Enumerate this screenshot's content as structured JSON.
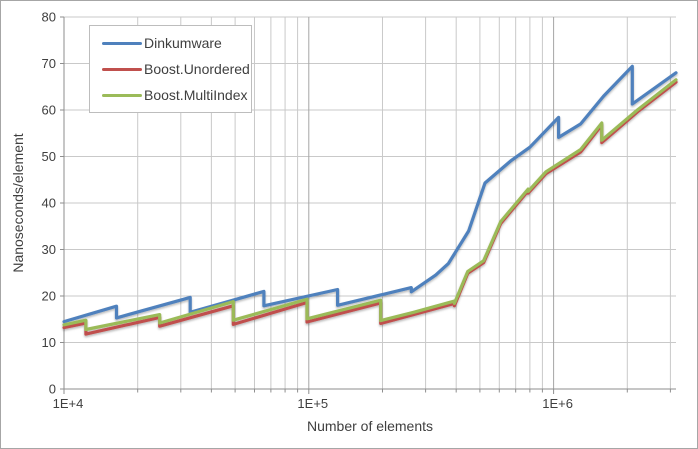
{
  "window": {
    "background": "#ffffff",
    "frame_border_color": "#a6a6a6"
  },
  "chart_data": {
    "type": "line",
    "x_scale": "log",
    "title": "",
    "xlabel": "Number of elements",
    "ylabel": "Nanoseconds/element",
    "xlim": [
      10000,
      3162278
    ],
    "ylim": [
      0,
      80
    ],
    "y_ticks": [
      0,
      10,
      20,
      30,
      40,
      50,
      60,
      70,
      80
    ],
    "x_major_ticks": [
      {
        "value": 10000,
        "label": "1E+4"
      },
      {
        "value": 100000,
        "label": "1E+5"
      },
      {
        "value": 1000000,
        "label": "1E+6"
      }
    ],
    "grid": {
      "horizontal": true,
      "vertical_minor": true,
      "minor_color": "#c9c9c9",
      "major_color": "#a6a6a6",
      "axis_color": "#8e8e8e",
      "tick_label_color": "#3f3f3f"
    },
    "legend_position": "top-left-inside",
    "series": [
      {
        "name": "Dinkumware",
        "color": "#4f81bd",
        "points": [
          [
            10000,
            14.5
          ],
          [
            16384,
            17.8
          ],
          [
            16384,
            15.3
          ],
          [
            32768,
            19.7
          ],
          [
            32768,
            16.5
          ],
          [
            65536,
            21.0
          ],
          [
            65536,
            17.9
          ],
          [
            131072,
            21.4
          ],
          [
            131072,
            18.0
          ],
          [
            262144,
            21.8
          ],
          [
            262144,
            20.9
          ],
          [
            330000,
            24.5
          ],
          [
            372000,
            27.0
          ],
          [
            450000,
            34.0
          ],
          [
            524288,
            44.3
          ],
          [
            667000,
            49.0
          ],
          [
            800000,
            52.0
          ],
          [
            1048576,
            58.4
          ],
          [
            1048576,
            54.1
          ],
          [
            1290000,
            57.0
          ],
          [
            1600000,
            63.0
          ],
          [
            2097152,
            69.4
          ],
          [
            2097152,
            61.3
          ],
          [
            3162278,
            68.0
          ]
        ]
      },
      {
        "name": "Boost.Unordered",
        "color": "#c0504d",
        "points": [
          [
            10000,
            13.2
          ],
          [
            12289,
            14.2
          ],
          [
            12289,
            11.8
          ],
          [
            24593,
            15.4
          ],
          [
            24593,
            13.5
          ],
          [
            49157,
            17.9
          ],
          [
            49157,
            13.9
          ],
          [
            98317,
            18.6
          ],
          [
            98317,
            14.4
          ],
          [
            196613,
            18.5
          ],
          [
            196613,
            14.1
          ],
          [
            268000,
            16.0
          ],
          [
            393241,
            18.4
          ],
          [
            393241,
            17.9
          ],
          [
            446000,
            24.9
          ],
          [
            518000,
            27.2
          ],
          [
            608000,
            35.6
          ],
          [
            786433,
            42.6
          ],
          [
            786433,
            42.1
          ],
          [
            930000,
            46.3
          ],
          [
            1290000,
            51.0
          ],
          [
            1572869,
            56.8
          ],
          [
            1572869,
            53.0
          ],
          [
            2200000,
            59.6
          ],
          [
            3162278,
            66.0
          ]
        ]
      },
      {
        "name": "Boost.MultiIndex",
        "color": "#9bbb59",
        "points": [
          [
            10000,
            13.8
          ],
          [
            12289,
            14.8
          ],
          [
            12289,
            12.8
          ],
          [
            24593,
            16.0
          ],
          [
            24593,
            14.2
          ],
          [
            49157,
            18.8
          ],
          [
            49157,
            14.8
          ],
          [
            98317,
            19.3
          ],
          [
            98317,
            15.1
          ],
          [
            196613,
            19.1
          ],
          [
            196613,
            14.7
          ],
          [
            268000,
            16.5
          ],
          [
            393241,
            18.9
          ],
          [
            393241,
            18.4
          ],
          [
            446000,
            25.3
          ],
          [
            518000,
            27.6
          ],
          [
            608000,
            36.0
          ],
          [
            786433,
            43.0
          ],
          [
            786433,
            42.5
          ],
          [
            930000,
            46.7
          ],
          [
            1290000,
            51.5
          ],
          [
            1572869,
            57.2
          ],
          [
            1572869,
            53.5
          ],
          [
            2200000,
            60.0
          ],
          [
            3162278,
            66.5
          ]
        ]
      }
    ]
  }
}
